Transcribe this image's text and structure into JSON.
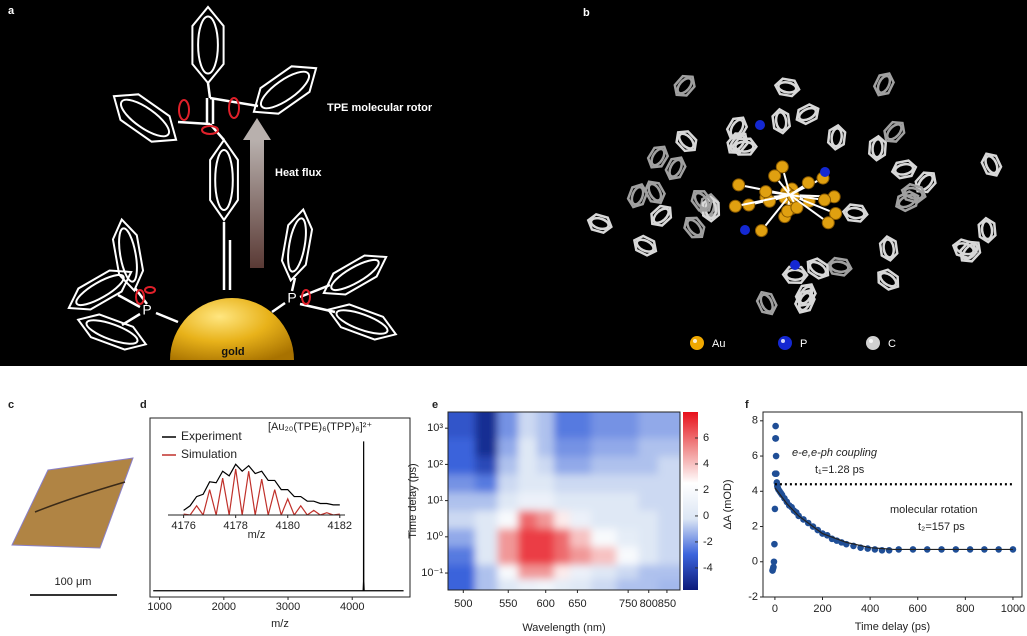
{
  "panel_a": {
    "label": "a",
    "rotor_label": "TPE molecular rotor",
    "heat_label": "Heat flux",
    "gold_label": "gold",
    "atom_labels": [
      "P",
      "P"
    ]
  },
  "panel_b": {
    "label": "b",
    "legend": [
      {
        "name": "Au",
        "color": "#f0a800"
      },
      {
        "name": "P",
        "color": "#1428d2"
      },
      {
        "name": "C",
        "color": "#d0d0d0"
      }
    ]
  },
  "panel_c": {
    "label": "c",
    "scale_label": "100 μm"
  },
  "chart_data": [
    {
      "type": "line",
      "panel": "d",
      "annotation": "[Au₂₀(TPE)₆(TPP)₆]²⁺",
      "xlabel": "m/z",
      "x": [
        900,
        1500,
        2000,
        2500,
        3000,
        3500,
        4000,
        4170,
        4176,
        4178,
        4180,
        4186,
        4300,
        4800
      ],
      "series": [
        {
          "color": "#000000",
          "values": [
            0.04,
            0.04,
            0.04,
            0.04,
            0.04,
            0.04,
            0.04,
            0.04,
            0.1,
            1.0,
            0.1,
            0.04,
            0.04,
            0.04
          ]
        }
      ],
      "xlim": [
        850,
        4900
      ],
      "xticks": [
        1000,
        2000,
        3000,
        4000
      ],
      "ylim": [
        0,
        1.15
      ]
    },
    {
      "type": "line",
      "xlabel": "m/z",
      "x": [
        4176,
        4176.25,
        4176.5,
        4176.75,
        4177,
        4177.25,
        4177.5,
        4177.75,
        4178,
        4178.25,
        4178.5,
        4178.75,
        4179,
        4179.25,
        4179.5,
        4179.75,
        4180,
        4180.25,
        4180.5,
        4180.75,
        4181,
        4181.25,
        4181.5,
        4181.75,
        4182
      ],
      "series": [
        {
          "name": "Experiment",
          "color": "#000000",
          "values": [
            0.1,
            0.2,
            0.4,
            0.45,
            0.72,
            0.7,
            0.95,
            0.85,
            1.1,
            0.95,
            1.07,
            0.9,
            0.95,
            0.75,
            0.75,
            0.55,
            0.55,
            0.4,
            0.4,
            0.3,
            0.3,
            0.25,
            0.25,
            0.22,
            0.22
          ]
        },
        {
          "name": "Simulation",
          "color": "#c0302a",
          "values": [
            0.02,
            0,
            0.2,
            0,
            0.55,
            0,
            0.8,
            0,
            1.0,
            0,
            0.95,
            0,
            0.78,
            0,
            0.55,
            0,
            0.35,
            0,
            0.2,
            0,
            0.1,
            0,
            0.05,
            0,
            0.02
          ]
        }
      ],
      "xlim": [
        4175.4,
        4182.2
      ],
      "xticks": [
        4176,
        4178,
        4180,
        4182
      ],
      "ylim": [
        0,
        1.15
      ],
      "legend": "upper left"
    },
    {
      "type": "heatmap",
      "panel": "e",
      "xlabel": "Wavelength (nm)",
      "ylabel": "Time delay (ps)",
      "x": [
        500,
        525,
        550,
        575,
        600,
        625,
        650,
        700,
        750,
        800,
        850,
        880
      ],
      "y": [
        0.05,
        0.1,
        0.3,
        1,
        3,
        10,
        30,
        100,
        300,
        1000,
        2000
      ],
      "z": [
        [
          -3,
          -1,
          0,
          1,
          1.5,
          0.5,
          0,
          -0.5,
          -1,
          -1,
          -1.2,
          -1.2
        ],
        [
          -3,
          -1,
          2,
          5,
          5,
          3,
          1,
          0,
          -0.5,
          -1,
          -1,
          -1
        ],
        [
          -2.5,
          0,
          5,
          7,
          7,
          6,
          5,
          4,
          2,
          0,
          -0.5,
          -0.5
        ],
        [
          -1.5,
          0,
          5,
          7,
          7,
          6,
          4,
          2,
          0.5,
          0,
          -0.5,
          -0.5
        ],
        [
          -0.5,
          0,
          2,
          6,
          5,
          3,
          1,
          0,
          0,
          0,
          -0.5,
          -0.5
        ],
        [
          -1,
          -1,
          0,
          1,
          1,
          0,
          0,
          0,
          0,
          -0.5,
          -0.5,
          -0.5
        ],
        [
          -2,
          -2.5,
          -0.5,
          0,
          0,
          -0.5,
          -0.5,
          -0.5,
          -0.5,
          -0.5,
          -0.5,
          -0.5
        ],
        [
          -3,
          -4,
          -1,
          0,
          -0.5,
          -1.5,
          -1.5,
          -1,
          -1,
          -1,
          -0.5,
          -0.5
        ],
        [
          -3,
          -5,
          -1.5,
          0,
          -1,
          -2,
          -2,
          -1.5,
          -1.5,
          -1,
          -1,
          -1
        ],
        [
          -3.5,
          -5,
          -2,
          -0.5,
          -1,
          -2.5,
          -2.5,
          -2,
          -2,
          -1.5,
          -1.5,
          -1.5
        ],
        [
          -3.5,
          -5,
          -2,
          -0.5,
          -1,
          -2.5,
          -2.5,
          -2,
          -2,
          -1.5,
          -1.5,
          -1.5
        ]
      ],
      "xlim": [
        485,
        890
      ],
      "xscale": "reciprocal",
      "xticks": [
        500,
        550,
        600,
        650,
        750,
        800,
        850
      ],
      "ylim": [
        0.034,
        2800
      ],
      "yscale": "log",
      "yticks": [
        {
          "value": 0.1,
          "label": "10⁻¹"
        },
        {
          "value": 1,
          "label": "10⁰"
        },
        {
          "value": 10,
          "label": "10¹"
        },
        {
          "value": 100,
          "label": "10²"
        },
        {
          "value": 1000,
          "label": "10³"
        }
      ],
      "zlim": [
        -5.7,
        8
      ],
      "colorbar_ticks": [
        -4,
        -2,
        0,
        2,
        4,
        6
      ],
      "colors": [
        "#0c1a7a",
        "#3c64dc",
        "#dce6f4",
        "#ffffff",
        "#f08c8c",
        "#e8101a"
      ]
    },
    {
      "type": "scatter",
      "panel": "f",
      "xlabel": "Time delay (ps)",
      "ylabel": "ΔA (mOD)",
      "annotations": [
        "e-e,e-ph coupling",
        "t₁=1.28 ps",
        "molecular rotation",
        "t₂=157 ps"
      ],
      "series": [
        {
          "color": "#1f4e96",
          "x": [
            -10,
            -8,
            -6,
            -4,
            -2,
            0,
            1,
            2,
            3,
            4,
            5,
            6,
            8,
            10,
            12,
            15,
            20,
            25,
            30,
            40,
            50,
            60,
            70,
            80,
            90,
            100,
            120,
            140,
            160,
            180,
            200,
            220,
            240,
            260,
            280,
            300,
            330,
            360,
            390,
            420,
            450,
            480,
            520,
            580,
            640,
            700,
            760,
            820,
            880,
            940,
            1000
          ],
          "values": [
            -0.5,
            -0.4,
            -0.3,
            0,
            1,
            3,
            5,
            7,
            7.7,
            7,
            6,
            5,
            4.5,
            4.3,
            4.2,
            4.1,
            4.0,
            3.9,
            3.8,
            3.6,
            3.4,
            3.2,
            3.1,
            2.9,
            2.8,
            2.6,
            2.4,
            2.2,
            2.0,
            1.8,
            1.6,
            1.5,
            1.3,
            1.2,
            1.1,
            1.0,
            0.9,
            0.8,
            0.75,
            0.7,
            0.65,
            0.65,
            0.7,
            0.7,
            0.7,
            0.7,
            0.7,
            0.7,
            0.7,
            0.7,
            0.7
          ]
        },
        {
          "color": "#222222",
          "mode": "line",
          "x": [
            0,
            50,
            100,
            200,
            300,
            400,
            500,
            1000
          ],
          "values": [
            4.2,
            3.3,
            2.6,
            1.6,
            1.1,
            0.8,
            0.7,
            0.7
          ]
        },
        {
          "color": "#000000",
          "mode": "line",
          "dash": "dotted",
          "x": [
            0,
            1000
          ],
          "values": [
            4.4,
            4.4
          ]
        }
      ],
      "xlim": [
        -50,
        1038
      ],
      "xticks": [
        0,
        200,
        400,
        600,
        800,
        1000
      ],
      "ylim": [
        -2,
        8.5
      ],
      "yticks": [
        -2,
        0,
        2,
        4,
        6,
        8
      ]
    }
  ]
}
